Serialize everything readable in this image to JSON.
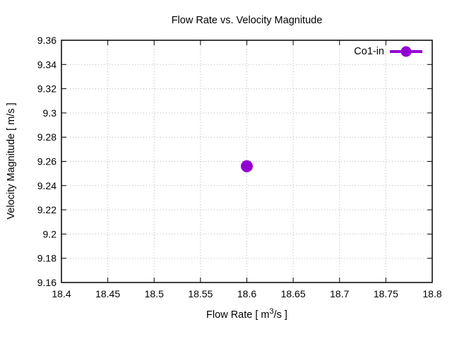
{
  "title": "Flow Rate vs. Velocity Magnitude",
  "chart_data": {
    "type": "scatter",
    "title": "Flow Rate vs. Velocity Magnitude",
    "xlabel": {
      "prefix": "Flow Rate [ m",
      "sup": "3",
      "suffix": "/s ]"
    },
    "ylabel": "Velocity Magnitude [ m/s ]",
    "xlim": [
      18.4,
      18.8
    ],
    "ylim": [
      9.16,
      9.36
    ],
    "x_ticks": [
      18.4,
      18.45,
      18.5,
      18.55,
      18.6,
      18.65,
      18.7,
      18.75,
      18.8
    ],
    "x_tick_labels": [
      "18.4",
      "18.45",
      "18.5",
      "18.55",
      "18.6",
      "18.65",
      "18.7",
      "18.75",
      "18.8"
    ],
    "y_ticks": [
      9.16,
      9.18,
      9.2,
      9.22,
      9.24,
      9.26,
      9.28,
      9.3,
      9.32,
      9.34,
      9.36
    ],
    "y_tick_labels": [
      "9.16",
      "9.18",
      "9.2",
      "9.22",
      "9.24",
      "9.26",
      "9.28",
      "9.3",
      "9.32",
      "9.34",
      "9.36"
    ],
    "grid": true,
    "legend_position": "top-right-inside",
    "series": [
      {
        "name": "Co1-in",
        "color": "#9400d3",
        "marker": "filled-circle",
        "marker_radius": 8.5,
        "points": [
          {
            "x": 18.6,
            "y": 9.256
          }
        ]
      }
    ]
  },
  "colors": {
    "series": "#9400d3",
    "grid": "#b8b8b8",
    "axis": "#000000",
    "background": "#ffffff"
  }
}
